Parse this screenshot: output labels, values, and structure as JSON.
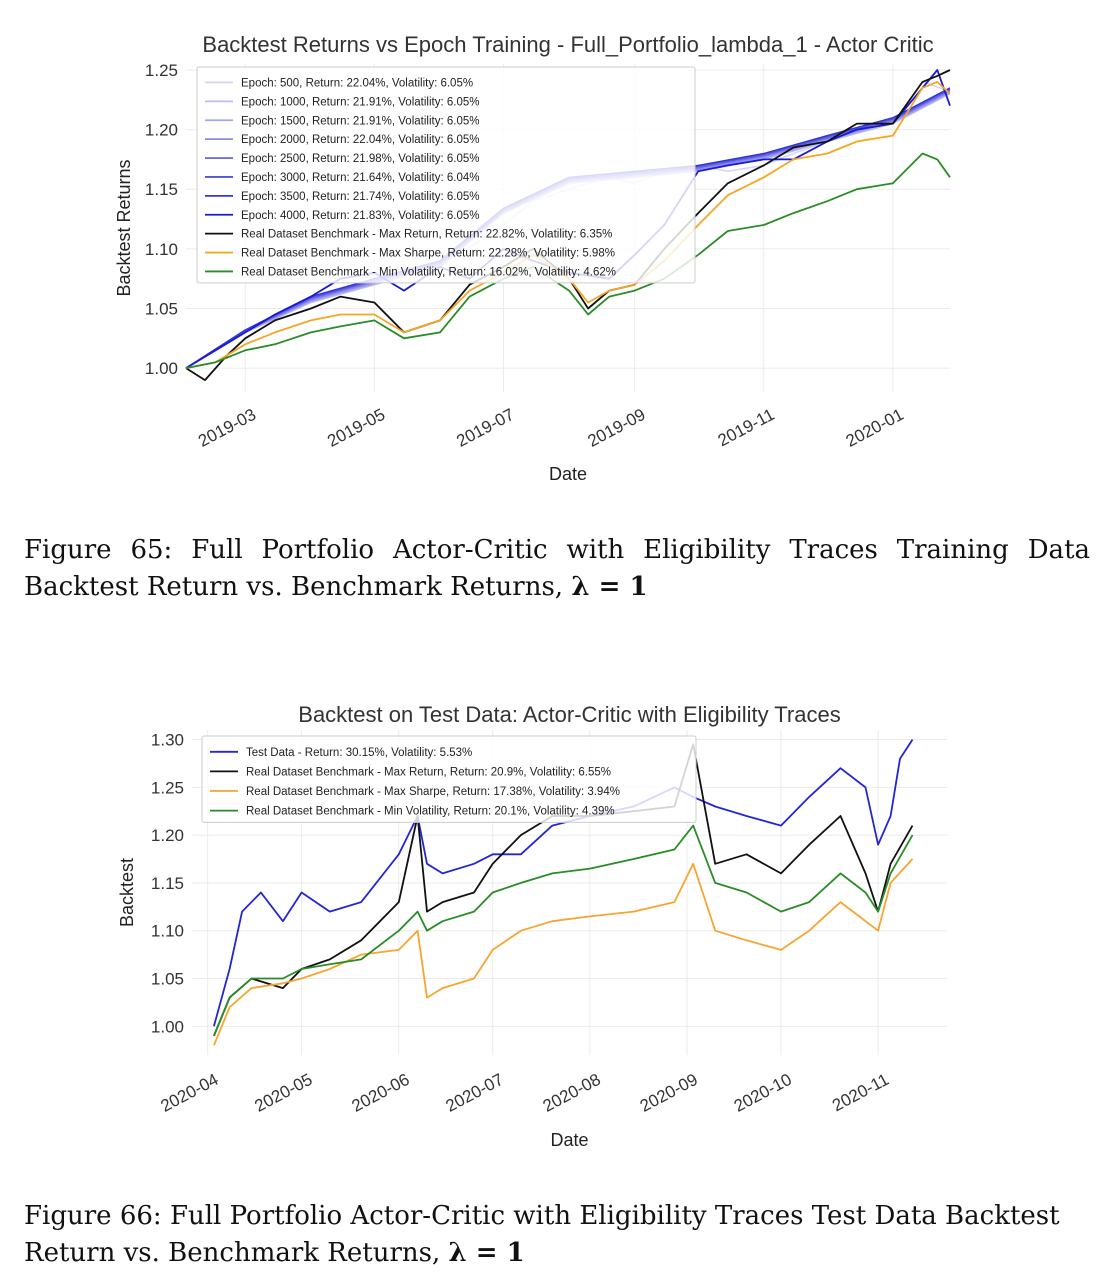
{
  "figures": [
    {
      "caption_prefix": "Figure 65:",
      "caption_text": "Full Portfolio Actor-Critic with Eligibility Traces Training Data Backtest Return vs. Benchmark Returns,",
      "caption_math": "λ = 1"
    },
    {
      "caption_prefix": "Figure 66:",
      "caption_text": "Full Portfolio Actor-Critic with Eligibility Traces Test Data Backtest Return vs. Benchmark Returns,",
      "caption_math": "λ = 1"
    }
  ],
  "chart_data": [
    {
      "type": "line",
      "title": "Backtest Returns vs Epoch Training - Full_Portfolio_lambda_1 - Actor Critic",
      "xlabel": "Date",
      "ylabel": "Backtest Returns",
      "xlim": [
        "2019-02-01",
        "2020-01-28"
      ],
      "ylim": [
        0.98,
        1.255
      ],
      "x_ticks": [
        "2019-03",
        "2019-05",
        "2019-07",
        "2019-09",
        "2019-11",
        "2020-01"
      ],
      "x_tick_dates": [
        "2019-03-01",
        "2019-05-01",
        "2019-07-01",
        "2019-09-01",
        "2019-11-01",
        "2020-01-01"
      ],
      "y_ticks": [
        "1.00",
        "1.05",
        "1.10",
        "1.15",
        "1.20",
        "1.25"
      ],
      "y_tick_values": [
        1.0,
        1.05,
        1.1,
        1.15,
        1.2,
        1.25
      ],
      "grid": true,
      "legend_position": "top-left",
      "series": [
        {
          "name": "Epoch: 500, Return: 22.04%, Volatility: 6.05%",
          "color": "#d6d6f6",
          "width": 1.6,
          "x": [
            "2019-02-01",
            "2019-03-01",
            "2019-04-01",
            "2019-05-01",
            "2019-06-01",
            "2019-07-01",
            "2019-07-15",
            "2019-08-01",
            "2019-08-20",
            "2019-09-01",
            "2019-09-15",
            "2019-10-01",
            "2019-10-15",
            "2019-11-01",
            "2019-11-15",
            "2019-12-01",
            "2019-12-15",
            "2020-01-01",
            "2020-01-15",
            "2020-01-28"
          ],
          "y": [
            1.0,
            1.03,
            1.055,
            1.07,
            1.085,
            1.12,
            1.14,
            1.15,
            1.16,
            1.155,
            1.165,
            1.17,
            1.165,
            1.17,
            1.18,
            1.19,
            1.2,
            1.205,
            1.24,
            1.232
          ]
        },
        {
          "name": "Epoch: 1000, Return: 21.91%, Volatility: 6.05%",
          "color": "#bdbdf2",
          "width": 1.4,
          "x": [
            "2019-02-01",
            "2019-03-01",
            "2019-04-01",
            "2019-05-01",
            "2019-06-01",
            "2019-07-01",
            "2019-08-01",
            "2019-09-01",
            "2019-10-01",
            "2019-11-01",
            "2019-12-01",
            "2020-01-01",
            "2020-01-28"
          ],
          "y": [
            1.0,
            1.03,
            1.055,
            1.07,
            1.085,
            1.13,
            1.155,
            1.16,
            1.165,
            1.175,
            1.19,
            1.205,
            1.23
          ]
        },
        {
          "name": "Epoch: 1500, Return: 21.91%, Volatility: 6.05%",
          "color": "#a3a3ee",
          "width": 1.4,
          "x": [
            "2019-02-01",
            "2019-03-01",
            "2019-04-01",
            "2019-05-01",
            "2019-06-01",
            "2019-07-01",
            "2019-08-01",
            "2019-09-01",
            "2019-10-01",
            "2019-11-01",
            "2019-12-01",
            "2020-01-01",
            "2020-01-28"
          ],
          "y": [
            1.0,
            1.03,
            1.056,
            1.071,
            1.086,
            1.13,
            1.156,
            1.161,
            1.166,
            1.176,
            1.191,
            1.206,
            1.231
          ]
        },
        {
          "name": "Epoch: 2000, Return: 22.04%, Volatility: 6.05%",
          "color": "#8a8ae8",
          "width": 1.4,
          "x": [
            "2019-02-01",
            "2019-03-01",
            "2019-04-01",
            "2019-05-01",
            "2019-06-01",
            "2019-07-01",
            "2019-08-01",
            "2019-09-01",
            "2019-10-01",
            "2019-11-01",
            "2019-12-01",
            "2020-01-01",
            "2020-01-28"
          ],
          "y": [
            1.0,
            1.031,
            1.057,
            1.072,
            1.087,
            1.131,
            1.157,
            1.162,
            1.167,
            1.177,
            1.192,
            1.207,
            1.232
          ]
        },
        {
          "name": "Epoch: 2500, Return: 21.98%, Volatility: 6.05%",
          "color": "#6f6fe3",
          "width": 1.4,
          "x": [
            "2019-02-01",
            "2019-03-01",
            "2019-04-01",
            "2019-05-01",
            "2019-06-01",
            "2019-07-01",
            "2019-08-01",
            "2019-09-01",
            "2019-10-01",
            "2019-11-01",
            "2019-12-01",
            "2020-01-01",
            "2020-01-28"
          ],
          "y": [
            1.0,
            1.031,
            1.058,
            1.073,
            1.088,
            1.132,
            1.158,
            1.163,
            1.168,
            1.178,
            1.193,
            1.208,
            1.233
          ]
        },
        {
          "name": "Epoch: 3000, Return: 21.64%, Volatility: 6.04%",
          "color": "#5252de",
          "width": 1.4,
          "x": [
            "2019-02-01",
            "2019-03-01",
            "2019-04-01",
            "2019-05-01",
            "2019-06-01",
            "2019-07-01",
            "2019-08-01",
            "2019-09-01",
            "2019-10-01",
            "2019-11-01",
            "2019-12-01",
            "2020-01-01",
            "2020-01-28"
          ],
          "y": [
            1.0,
            1.032,
            1.059,
            1.074,
            1.089,
            1.133,
            1.159,
            1.164,
            1.169,
            1.179,
            1.194,
            1.209,
            1.234
          ]
        },
        {
          "name": "Epoch: 3500, Return: 21.74%, Volatility: 6.05%",
          "color": "#3434d8",
          "width": 1.4,
          "x": [
            "2019-02-01",
            "2019-03-01",
            "2019-04-01",
            "2019-05-01",
            "2019-06-01",
            "2019-07-01",
            "2019-08-01",
            "2019-09-01",
            "2019-10-01",
            "2019-11-01",
            "2019-12-01",
            "2020-01-01",
            "2020-01-28"
          ],
          "y": [
            1.0,
            1.032,
            1.06,
            1.075,
            1.09,
            1.134,
            1.16,
            1.165,
            1.17,
            1.18,
            1.195,
            1.21,
            1.235
          ]
        },
        {
          "name": "Epoch: 4000, Return: 21.83%, Volatility: 6.05%",
          "color": "#1a1ad6",
          "width": 1.8,
          "x": [
            "2019-02-01",
            "2019-02-15",
            "2019-03-01",
            "2019-03-15",
            "2019-04-01",
            "2019-04-15",
            "2019-05-01",
            "2019-05-15",
            "2019-06-01",
            "2019-06-15",
            "2019-07-01",
            "2019-07-15",
            "2019-08-01",
            "2019-08-20",
            "2019-09-01",
            "2019-09-15",
            "2019-10-01",
            "2019-10-15",
            "2019-11-01",
            "2019-11-15",
            "2019-12-01",
            "2019-12-15",
            "2020-01-01",
            "2020-01-15",
            "2020-01-22",
            "2020-01-28"
          ],
          "y": [
            1.0,
            1.015,
            1.03,
            1.045,
            1.06,
            1.075,
            1.08,
            1.065,
            1.085,
            1.075,
            1.1,
            1.09,
            1.08,
            1.075,
            1.095,
            1.12,
            1.165,
            1.17,
            1.175,
            1.175,
            1.19,
            1.2,
            1.205,
            1.235,
            1.25,
            1.22
          ]
        },
        {
          "name": "Real Dataset Benchmark - Max Return, Return: 22.82%, Volatility: 6.35%",
          "color": "#111111",
          "width": 1.8,
          "x": [
            "2019-02-01",
            "2019-02-10",
            "2019-02-20",
            "2019-03-01",
            "2019-03-15",
            "2019-04-01",
            "2019-04-15",
            "2019-05-01",
            "2019-05-15",
            "2019-06-01",
            "2019-06-15",
            "2019-07-01",
            "2019-07-15",
            "2019-08-01",
            "2019-08-10",
            "2019-08-20",
            "2019-09-01",
            "2019-09-15",
            "2019-10-01",
            "2019-10-15",
            "2019-11-01",
            "2019-11-15",
            "2019-12-01",
            "2019-12-15",
            "2020-01-01",
            "2020-01-15",
            "2020-01-22",
            "2020-01-28"
          ],
          "y": [
            1.0,
            0.99,
            1.01,
            1.025,
            1.04,
            1.05,
            1.06,
            1.055,
            1.03,
            1.04,
            1.07,
            1.085,
            1.1,
            1.075,
            1.05,
            1.065,
            1.07,
            1.1,
            1.13,
            1.155,
            1.17,
            1.185,
            1.19,
            1.205,
            1.205,
            1.24,
            1.245,
            1.25
          ]
        },
        {
          "name": "Real Dataset Benchmark - Max Sharpe, Return: 22.28%, Volatility: 5.98%",
          "color": "#f5a623",
          "width": 1.8,
          "x": [
            "2019-02-01",
            "2019-02-15",
            "2019-03-01",
            "2019-03-15",
            "2019-04-01",
            "2019-04-15",
            "2019-05-01",
            "2019-05-15",
            "2019-06-01",
            "2019-06-15",
            "2019-07-01",
            "2019-07-15",
            "2019-08-01",
            "2019-08-10",
            "2019-08-20",
            "2019-09-01",
            "2019-09-15",
            "2019-10-01",
            "2019-10-15",
            "2019-11-01",
            "2019-11-15",
            "2019-12-01",
            "2019-12-15",
            "2020-01-01",
            "2020-01-15",
            "2020-01-22",
            "2020-01-28"
          ],
          "y": [
            1.0,
            1.005,
            1.02,
            1.03,
            1.04,
            1.045,
            1.045,
            1.03,
            1.04,
            1.065,
            1.08,
            1.095,
            1.075,
            1.055,
            1.065,
            1.07,
            1.09,
            1.12,
            1.145,
            1.16,
            1.175,
            1.18,
            1.19,
            1.195,
            1.235,
            1.24,
            1.23
          ]
        },
        {
          "name": "Real Dataset Benchmark - Min Volatility, Return: 16.02%, Volatility: 4.62%",
          "color": "#2a8c26",
          "width": 1.8,
          "x": [
            "2019-02-01",
            "2019-02-15",
            "2019-03-01",
            "2019-03-15",
            "2019-04-01",
            "2019-04-15",
            "2019-05-01",
            "2019-05-15",
            "2019-06-01",
            "2019-06-15",
            "2019-07-01",
            "2019-07-15",
            "2019-08-01",
            "2019-08-10",
            "2019-08-20",
            "2019-09-01",
            "2019-09-15",
            "2019-10-01",
            "2019-10-15",
            "2019-11-01",
            "2019-11-15",
            "2019-12-01",
            "2019-12-15",
            "2020-01-01",
            "2020-01-15",
            "2020-01-22",
            "2020-01-28"
          ],
          "y": [
            1.0,
            1.005,
            1.015,
            1.02,
            1.03,
            1.035,
            1.04,
            1.025,
            1.03,
            1.06,
            1.075,
            1.085,
            1.065,
            1.045,
            1.06,
            1.065,
            1.075,
            1.095,
            1.115,
            1.12,
            1.13,
            1.14,
            1.15,
            1.155,
            1.18,
            1.175,
            1.16
          ]
        }
      ]
    },
    {
      "type": "line",
      "title": "Backtest on Test Data: Actor-Critic with Eligibility Traces",
      "xlabel": "Date",
      "ylabel": "Backtest",
      "xlim": [
        "2020-03-27",
        "2020-11-23"
      ],
      "ylim": [
        0.97,
        1.31
      ],
      "x_ticks": [
        "2020-04",
        "2020-05",
        "2020-06",
        "2020-07",
        "2020-08",
        "2020-09",
        "2020-10",
        "2020-11"
      ],
      "x_tick_dates": [
        "2020-04-01",
        "2020-05-01",
        "2020-06-01",
        "2020-07-01",
        "2020-08-01",
        "2020-09-01",
        "2020-10-01",
        "2020-11-01"
      ],
      "y_ticks": [
        "1.00",
        "1.05",
        "1.10",
        "1.15",
        "1.20",
        "1.25",
        "1.30"
      ],
      "y_tick_values": [
        1.0,
        1.05,
        1.1,
        1.15,
        1.2,
        1.25,
        1.3
      ],
      "grid": true,
      "legend_position": "top-left",
      "series": [
        {
          "name": "Test Data - Return: 30.15%, Volatility: 5.53%",
          "color": "#2424d8",
          "width": 1.8,
          "x": [
            "2020-04-03",
            "2020-04-08",
            "2020-04-12",
            "2020-04-18",
            "2020-04-25",
            "2020-05-01",
            "2020-05-10",
            "2020-05-20",
            "2020-06-01",
            "2020-06-07",
            "2020-06-10",
            "2020-06-15",
            "2020-06-25",
            "2020-07-01",
            "2020-07-10",
            "2020-07-20",
            "2020-08-01",
            "2020-08-15",
            "2020-08-28",
            "2020-09-03",
            "2020-09-10",
            "2020-09-20",
            "2020-10-01",
            "2020-10-10",
            "2020-10-20",
            "2020-10-28",
            "2020-11-01",
            "2020-11-05",
            "2020-11-08",
            "2020-11-12"
          ],
          "y": [
            1.0,
            1.06,
            1.12,
            1.14,
            1.11,
            1.14,
            1.12,
            1.13,
            1.18,
            1.22,
            1.17,
            1.16,
            1.17,
            1.18,
            1.18,
            1.21,
            1.22,
            1.23,
            1.25,
            1.24,
            1.23,
            1.22,
            1.21,
            1.24,
            1.27,
            1.25,
            1.19,
            1.22,
            1.28,
            1.3
          ]
        },
        {
          "name": "Real Dataset Benchmark - Max Return, Return: 20.9%, Volatility: 6.55%",
          "color": "#111111",
          "width": 1.8,
          "x": [
            "2020-04-03",
            "2020-04-08",
            "2020-04-15",
            "2020-04-25",
            "2020-05-01",
            "2020-05-10",
            "2020-05-20",
            "2020-06-01",
            "2020-06-07",
            "2020-06-10",
            "2020-06-15",
            "2020-06-25",
            "2020-07-01",
            "2020-07-10",
            "2020-07-20",
            "2020-08-01",
            "2020-08-15",
            "2020-08-28",
            "2020-09-03",
            "2020-09-10",
            "2020-09-20",
            "2020-10-01",
            "2020-10-10",
            "2020-10-20",
            "2020-10-28",
            "2020-11-01",
            "2020-11-05",
            "2020-11-12"
          ],
          "y": [
            0.99,
            1.03,
            1.05,
            1.04,
            1.06,
            1.07,
            1.09,
            1.13,
            1.22,
            1.12,
            1.13,
            1.14,
            1.17,
            1.2,
            1.22,
            1.22,
            1.225,
            1.23,
            1.295,
            1.17,
            1.18,
            1.16,
            1.19,
            1.22,
            1.16,
            1.12,
            1.17,
            1.21
          ]
        },
        {
          "name": "Real Dataset Benchmark - Max Sharpe, Return: 17.38%, Volatility: 3.94%",
          "color": "#f7a531",
          "width": 1.8,
          "x": [
            "2020-04-03",
            "2020-04-08",
            "2020-04-15",
            "2020-04-25",
            "2020-05-01",
            "2020-05-10",
            "2020-05-20",
            "2020-06-01",
            "2020-06-07",
            "2020-06-10",
            "2020-06-15",
            "2020-06-25",
            "2020-07-01",
            "2020-07-10",
            "2020-07-20",
            "2020-08-01",
            "2020-08-15",
            "2020-08-28",
            "2020-09-03",
            "2020-09-10",
            "2020-09-20",
            "2020-10-01",
            "2020-10-10",
            "2020-10-20",
            "2020-10-28",
            "2020-11-01",
            "2020-11-05",
            "2020-11-12"
          ],
          "y": [
            0.98,
            1.02,
            1.04,
            1.045,
            1.05,
            1.06,
            1.075,
            1.08,
            1.1,
            1.03,
            1.04,
            1.05,
            1.08,
            1.1,
            1.11,
            1.115,
            1.12,
            1.13,
            1.17,
            1.1,
            1.09,
            1.08,
            1.1,
            1.13,
            1.11,
            1.1,
            1.15,
            1.175
          ]
        },
        {
          "name": "Real Dataset Benchmark - Min Volatility, Return: 20.1%, Volatility: 4.39%",
          "color": "#2a8c26",
          "width": 1.8,
          "x": [
            "2020-04-03",
            "2020-04-08",
            "2020-04-15",
            "2020-04-25",
            "2020-05-01",
            "2020-05-10",
            "2020-05-20",
            "2020-06-01",
            "2020-06-07",
            "2020-06-10",
            "2020-06-15",
            "2020-06-25",
            "2020-07-01",
            "2020-07-10",
            "2020-07-20",
            "2020-08-01",
            "2020-08-15",
            "2020-08-28",
            "2020-09-03",
            "2020-09-10",
            "2020-09-20",
            "2020-10-01",
            "2020-10-10",
            "2020-10-20",
            "2020-10-28",
            "2020-11-01",
            "2020-11-05",
            "2020-11-12"
          ],
          "y": [
            0.99,
            1.03,
            1.05,
            1.05,
            1.06,
            1.065,
            1.07,
            1.1,
            1.12,
            1.1,
            1.11,
            1.12,
            1.14,
            1.15,
            1.16,
            1.165,
            1.175,
            1.185,
            1.21,
            1.15,
            1.14,
            1.12,
            1.13,
            1.16,
            1.14,
            1.12,
            1.16,
            1.2
          ]
        }
      ]
    }
  ]
}
